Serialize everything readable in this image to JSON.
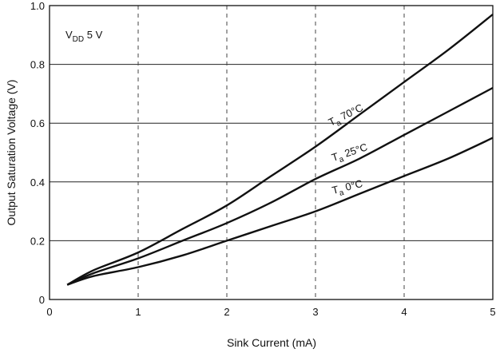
{
  "chart_data": {
    "type": "line",
    "xlabel": "Sink Current (mA)",
    "ylabel": "Output Saturation Voltage (V)",
    "xlim": [
      0,
      5
    ],
    "ylim": [
      0,
      1.0
    ],
    "xticks": [
      "0",
      "1",
      "2",
      "3",
      "4",
      "5"
    ],
    "yticks": [
      "0",
      "0.2",
      "0.4",
      "0.6",
      "0.8",
      "1.0"
    ],
    "grid": "horizontal solid, vertical dashed",
    "condition": {
      "main": "V",
      "sub": "DD",
      "rest": " 5 V"
    },
    "series": [
      {
        "name": "Ta 70°C",
        "label": {
          "main": "T",
          "sub": "a",
          "rest": " 70°C"
        },
        "x": [
          0.2,
          0.5,
          1.0,
          1.5,
          2.0,
          2.5,
          3.0,
          3.5,
          4.0,
          4.5,
          5.0
        ],
        "y": [
          0.05,
          0.1,
          0.16,
          0.24,
          0.32,
          0.42,
          0.52,
          0.63,
          0.74,
          0.85,
          0.97
        ]
      },
      {
        "name": "Ta 25°C",
        "label": {
          "main": "T",
          "sub": "a",
          "rest": " 25°C"
        },
        "x": [
          0.2,
          0.5,
          1.0,
          1.5,
          2.0,
          2.5,
          3.0,
          3.5,
          4.0,
          4.5,
          5.0
        ],
        "y": [
          0.05,
          0.09,
          0.14,
          0.2,
          0.26,
          0.33,
          0.41,
          0.48,
          0.56,
          0.64,
          0.72
        ]
      },
      {
        "name": "Ta 0°C",
        "label": {
          "main": "T",
          "sub": "a",
          "rest": " 0°C"
        },
        "x": [
          0.2,
          0.5,
          1.0,
          1.5,
          2.0,
          2.5,
          3.0,
          3.5,
          4.0,
          4.5,
          5.0
        ],
        "y": [
          0.05,
          0.08,
          0.11,
          0.15,
          0.2,
          0.25,
          0.3,
          0.36,
          0.42,
          0.48,
          0.55
        ]
      }
    ]
  }
}
